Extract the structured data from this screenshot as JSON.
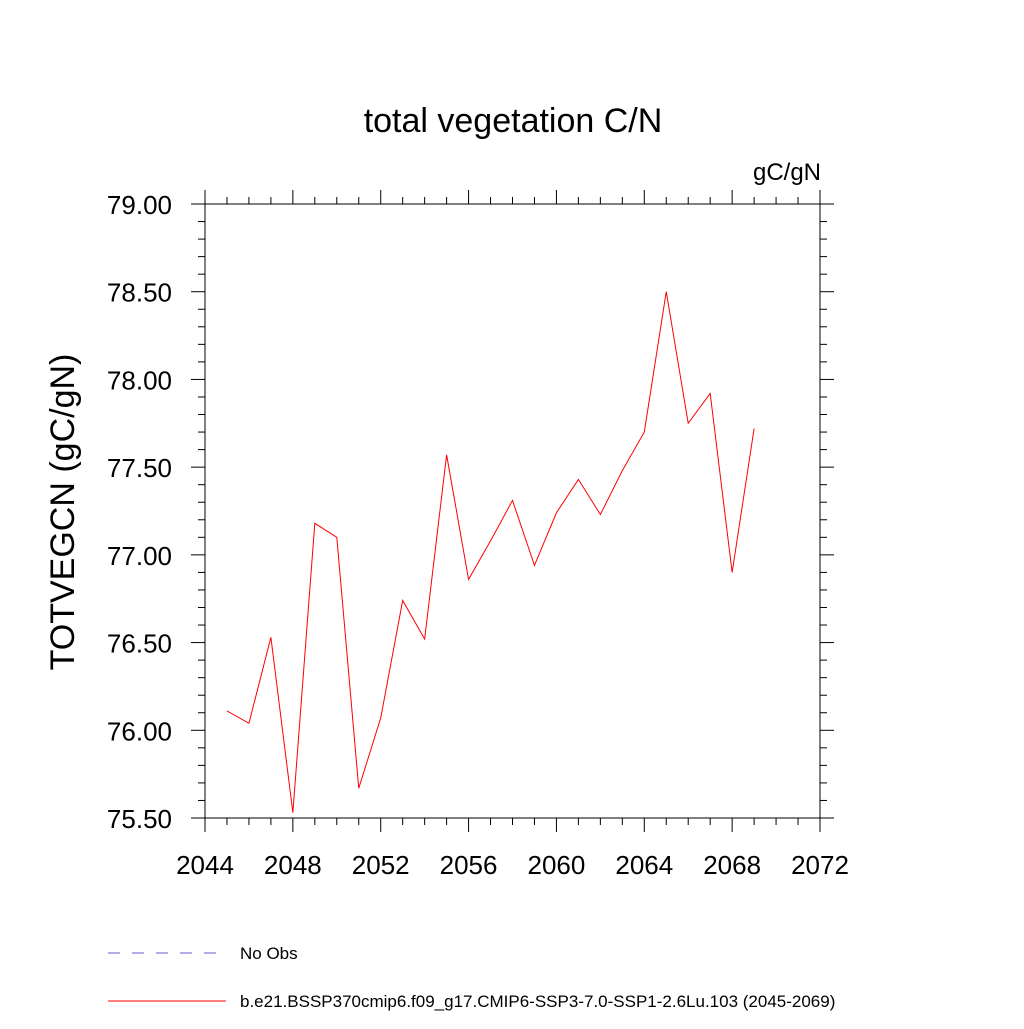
{
  "chart_data": {
    "type": "line",
    "title": "total vegetation C/N",
    "units_label": "gC/gN",
    "ylabel": "TOTVEGCN  (gC/gN)",
    "xlabel": "",
    "xlim": [
      2044,
      2072
    ],
    "ylim": [
      75.5,
      79.0
    ],
    "x_ticks": [
      2044,
      2048,
      2052,
      2056,
      2060,
      2064,
      2068,
      2072
    ],
    "x_tick_labels": [
      "2044",
      "2048",
      "2052",
      "2056",
      "2060",
      "2064",
      "2068",
      "2072"
    ],
    "y_ticks": [
      75.5,
      76.0,
      76.5,
      77.0,
      77.5,
      78.0,
      78.5,
      79.0
    ],
    "y_tick_labels": [
      "75.50",
      "76.00",
      "76.50",
      "77.00",
      "77.50",
      "78.00",
      "78.50",
      "79.00"
    ],
    "grid": false,
    "legend_position": "bottom",
    "series": [
      {
        "name": "b.e21.BSSP370cmip6.f09_g17.CMIP6-SSP3-7.0-SSP1-2.6Lu.103 (2045-2069)",
        "color": "#ff0000",
        "style": "solid",
        "x": [
          2045,
          2046,
          2047,
          2048,
          2049,
          2050,
          2051,
          2052,
          2053,
          2054,
          2055,
          2056,
          2057,
          2058,
          2059,
          2060,
          2061,
          2062,
          2063,
          2064,
          2065,
          2066,
          2067,
          2068,
          2069
        ],
        "values": [
          76.11,
          76.04,
          76.53,
          75.53,
          77.18,
          77.1,
          75.67,
          76.07,
          76.74,
          76.52,
          77.57,
          76.86,
          77.08,
          77.31,
          76.94,
          77.24,
          77.43,
          77.23,
          77.48,
          77.7,
          78.5,
          77.75,
          77.92,
          76.9,
          77.72
        ]
      },
      {
        "name": "No Obs",
        "color": "#6a5acd",
        "style": "dashed",
        "x": [],
        "values": []
      }
    ]
  }
}
